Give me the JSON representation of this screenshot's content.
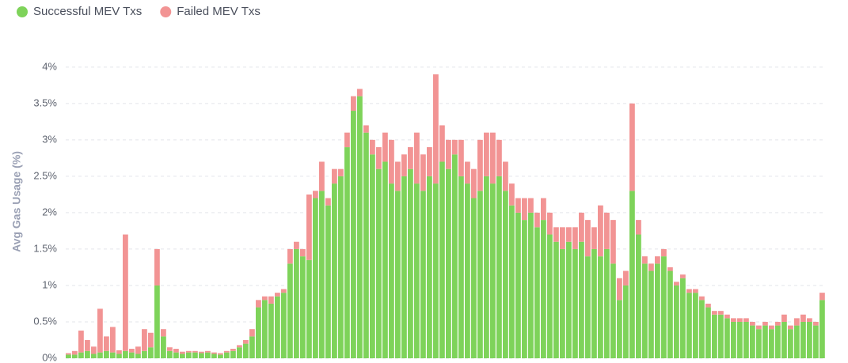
{
  "chart_data": {
    "type": "stacked-bar",
    "y_label": "Avg Gas Usage (%)",
    "legend": "top-left",
    "grid": true,
    "ylim": [
      0,
      4.4
    ],
    "yticks": [
      {
        "value": 0,
        "label": "0%"
      },
      {
        "value": 0.5,
        "label": "0.5%"
      },
      {
        "value": 1,
        "label": "1%"
      },
      {
        "value": 1.5,
        "label": "1.5%"
      },
      {
        "value": 2,
        "label": "2%"
      },
      {
        "value": 2.5,
        "label": "2.5%"
      },
      {
        "value": 3,
        "label": "3%"
      },
      {
        "value": 3.5,
        "label": "3.5%"
      },
      {
        "value": 4,
        "label": "4%"
      }
    ],
    "categories": [
      null,
      null,
      null,
      null,
      null,
      null,
      null,
      null,
      null,
      null,
      null,
      null,
      null,
      null,
      null,
      null,
      null,
      null,
      null,
      null,
      null,
      null,
      null,
      null,
      null,
      null,
      null,
      null,
      null,
      null,
      null,
      null,
      null,
      null,
      null,
      null,
      null,
      null,
      null,
      null,
      null,
      null,
      null,
      null,
      null,
      null,
      null,
      null,
      null,
      null,
      null,
      null,
      null,
      null,
      null,
      null,
      null,
      null,
      null,
      null,
      null,
      null,
      null,
      null,
      null,
      null,
      null,
      null,
      null,
      null,
      null,
      null,
      null,
      null,
      null,
      null,
      null,
      null,
      null,
      null,
      null,
      null,
      null,
      null,
      null,
      null,
      null,
      null,
      null,
      null,
      null,
      null,
      null,
      null,
      null,
      null,
      null,
      null,
      null,
      null,
      null,
      null,
      null,
      null,
      null,
      null,
      null,
      null,
      null,
      null,
      null,
      null,
      null,
      null,
      null,
      null,
      null,
      null,
      null,
      null
    ],
    "series": [
      {
        "name": "Successful MEV Txs",
        "color": "#7ed35a",
        "values": [
          0.05,
          0.05,
          0.08,
          0.1,
          0.06,
          0.08,
          0.1,
          0.08,
          0.06,
          0.1,
          0.08,
          0.06,
          0.1,
          0.15,
          1.0,
          0.3,
          0.1,
          0.08,
          0.06,
          0.08,
          0.08,
          0.07,
          0.08,
          0.06,
          0.05,
          0.08,
          0.1,
          0.15,
          0.2,
          0.3,
          0.7,
          0.8,
          0.75,
          0.85,
          0.9,
          1.3,
          1.5,
          1.4,
          1.35,
          2.2,
          2.3,
          2.1,
          2.4,
          2.5,
          2.9,
          3.4,
          3.6,
          3.1,
          2.8,
          2.6,
          2.7,
          2.4,
          2.3,
          2.5,
          2.6,
          2.4,
          2.3,
          2.5,
          2.4,
          2.7,
          2.6,
          2.8,
          2.5,
          2.4,
          2.2,
          2.3,
          2.5,
          2.4,
          2.5,
          2.3,
          2.1,
          2.0,
          1.9,
          2.0,
          1.8,
          1.9,
          1.7,
          1.6,
          1.5,
          1.6,
          1.5,
          1.6,
          1.4,
          1.5,
          1.4,
          1.5,
          1.3,
          0.8,
          1.0,
          2.3,
          1.7,
          1.3,
          1.2,
          1.3,
          1.4,
          1.2,
          1.0,
          1.1,
          0.9,
          0.9,
          0.8,
          0.7,
          0.6,
          0.6,
          0.55,
          0.5,
          0.5,
          0.5,
          0.45,
          0.4,
          0.45,
          0.4,
          0.45,
          0.5,
          0.4,
          0.45,
          0.5,
          0.5,
          0.45,
          0.8
        ]
      },
      {
        "name": "Failed MEV Txs",
        "color": "#f29494",
        "values": [
          0.02,
          0.05,
          0.3,
          0.15,
          0.1,
          0.6,
          0.2,
          0.35,
          0.05,
          1.6,
          0.05,
          0.1,
          0.3,
          0.2,
          0.5,
          0.1,
          0.05,
          0.05,
          0.03,
          0.02,
          0.02,
          0.02,
          0.02,
          0.02,
          0.02,
          0.02,
          0.03,
          0.03,
          0.05,
          0.1,
          0.1,
          0.05,
          0.1,
          0.05,
          0.05,
          0.2,
          0.1,
          0.1,
          0.9,
          0.1,
          0.4,
          0.1,
          0.2,
          0.1,
          0.2,
          0.2,
          0.1,
          0.1,
          0.2,
          0.3,
          0.4,
          0.6,
          0.4,
          0.3,
          0.3,
          0.7,
          0.5,
          0.4,
          1.5,
          0.5,
          0.4,
          0.2,
          0.5,
          0.3,
          0.4,
          0.7,
          0.6,
          0.7,
          0.5,
          0.4,
          0.3,
          0.2,
          0.3,
          0.2,
          0.2,
          0.3,
          0.3,
          0.2,
          0.3,
          0.2,
          0.3,
          0.4,
          0.5,
          0.3,
          0.7,
          0.5,
          0.6,
          0.3,
          0.2,
          1.2,
          0.2,
          0.1,
          0.1,
          0.1,
          0.1,
          0.05,
          0.05,
          0.05,
          0.05,
          0.05,
          0.05,
          0.05,
          0.05,
          0.05,
          0.05,
          0.05,
          0.05,
          0.05,
          0.05,
          0.05,
          0.05,
          0.05,
          0.05,
          0.1,
          0.05,
          0.1,
          0.1,
          0.05,
          0.05,
          0.1
        ]
      }
    ]
  }
}
